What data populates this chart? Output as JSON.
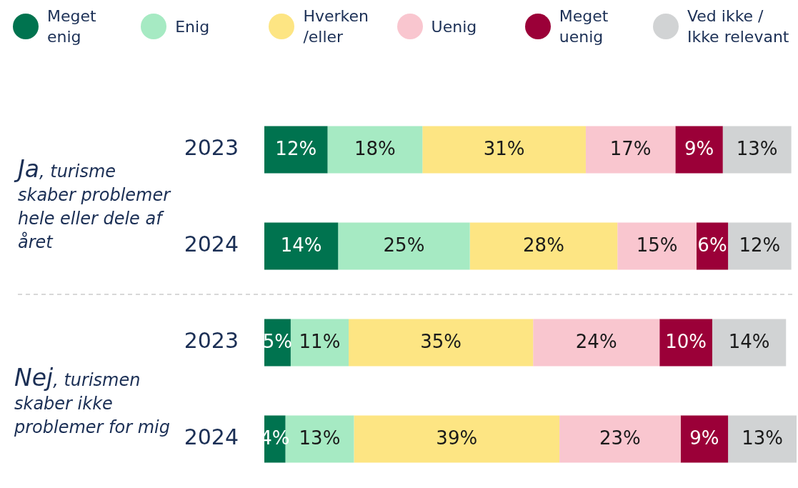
{
  "chart_data": {
    "type": "bar",
    "orientation": "horizontal",
    "stacked": true,
    "legend": "top",
    "grid": false,
    "xlim": [
      0,
      101
    ],
    "categories": [
      "2023",
      "2024",
      "2023",
      "2024"
    ],
    "annotations": [
      "Ja, turisme skaber problemer hele eller dele af året",
      "Nej, turismen skaber ikke problemer for mig"
    ],
    "series": [
      {
        "name": "Meget enig",
        "color": "#00734f",
        "values": [
          12,
          14,
          5,
          4
        ],
        "value_labels": [
          "12%",
          "14%",
          "5%",
          "4%"
        ]
      },
      {
        "name": "Enig",
        "color": "#a6eac3",
        "values": [
          18,
          25,
          11,
          13
        ],
        "value_labels": [
          "18%",
          "25%",
          "11%",
          "13%"
        ]
      },
      {
        "name": "Hverken /eller",
        "color": "#fde583",
        "values": [
          31,
          28,
          35,
          39
        ],
        "value_labels": [
          "31%",
          "28%",
          "35%",
          "39%"
        ]
      },
      {
        "name": "Uenig",
        "color": "#f9c6cf",
        "values": [
          17,
          15,
          24,
          23
        ],
        "value_labels": [
          "17%",
          "15%",
          "24%",
          "23%"
        ]
      },
      {
        "name": "Meget uenig",
        "color": "#9b0038",
        "values": [
          9,
          6,
          10,
          9
        ],
        "value_labels": [
          "9%",
          "6%",
          "10%",
          "9%"
        ]
      },
      {
        "name": "Ved ikke / Ikke relevant",
        "color": "#d1d3d4",
        "values": [
          13,
          12,
          14,
          13
        ],
        "value_labels": [
          "13%",
          "12%",
          "14%",
          "13%"
        ]
      }
    ]
  }
}
